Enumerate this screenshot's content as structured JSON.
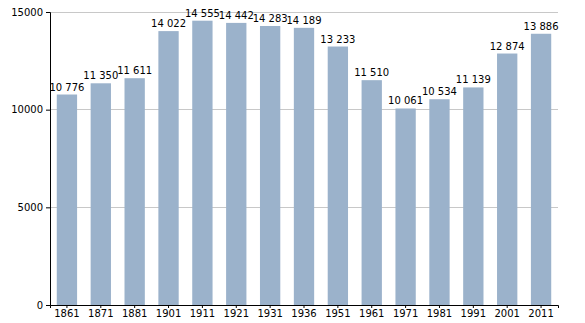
{
  "chart_data": {
    "type": "bar",
    "categories": [
      "1861",
      "1871",
      "1881",
      "1901",
      "1911",
      "1921",
      "1931",
      "1936",
      "1951",
      "1961",
      "1971",
      "1981",
      "1991",
      "2001",
      "2011"
    ],
    "values": [
      10776,
      11350,
      11611,
      14022,
      14555,
      14442,
      14283,
      14189,
      13233,
      11510,
      10061,
      10534,
      11139,
      12874,
      13886
    ],
    "value_labels": [
      "10 776",
      "11 350",
      "11 611",
      "14 022",
      "14 555",
      "14 442",
      "14 283",
      "14 189",
      "13 233",
      "11 510",
      "10 061",
      "10 534",
      "11 139",
      "12 874",
      "13 886"
    ],
    "data_labels": true,
    "color": "#9bb2cb",
    "ylim": [
      0,
      15000
    ],
    "yticks": [
      0,
      5000,
      10000,
      15000
    ],
    "grid": true
  }
}
